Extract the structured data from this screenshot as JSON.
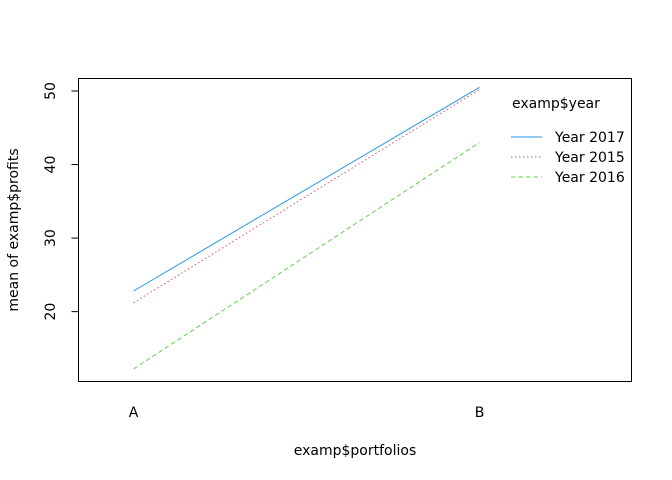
{
  "chart_data": {
    "type": "line",
    "title": "",
    "xlabel": "examp$portfolios",
    "ylabel": "mean of  examp$profits",
    "categories": [
      "A",
      "B"
    ],
    "ylim": [
      10.5,
      51.7
    ],
    "yticks": [
      20,
      30,
      40,
      50
    ],
    "grid": false,
    "legend": {
      "title": "examp$year",
      "placement": "top-right"
    },
    "series": [
      {
        "name": "Year 2017",
        "values": [
          22.8,
          50.5
        ],
        "color": "#2297e6",
        "dash": "solid"
      },
      {
        "name": "Year 2015",
        "values": [
          21.2,
          50.2
        ],
        "color": "#df536b",
        "dash": "dotted"
      },
      {
        "name": "Year 2016",
        "values": [
          12.2,
          43.0
        ],
        "color": "#61d04f",
        "dash": "dashed"
      }
    ]
  }
}
